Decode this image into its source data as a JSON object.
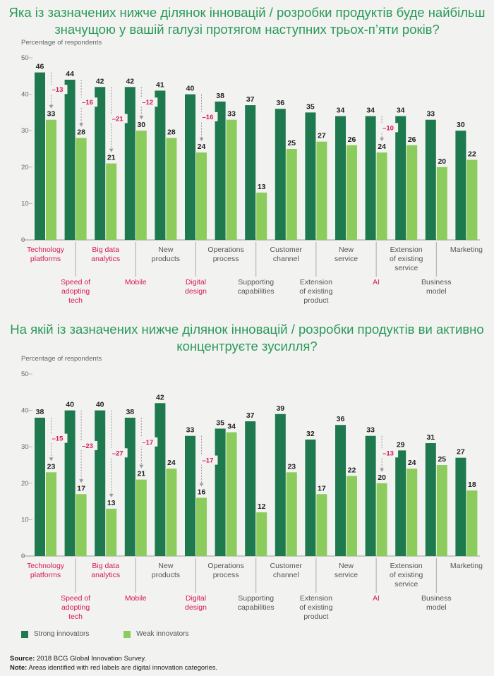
{
  "colors": {
    "strong": "#1e7a4e",
    "weak": "#8ccc5c",
    "digital": "#d7185b",
    "label": "#555555",
    "value": "#222222",
    "axis": "#999999",
    "tick": "#666666"
  },
  "legend": {
    "strong_label": "Strong innovators",
    "weak_label": "Weak innovators"
  },
  "footnote": {
    "source_label": "Source:",
    "source_text": " 2018 BCG Global Innovation Survey.",
    "note_label": "Note:",
    "note_text": " Areas identified with red labels are digital innovation categories."
  },
  "chart_data": [
    {
      "type": "bar",
      "title": "Яка із зазначених нижче ділянок інновацій / розробки продуктів буде найбільш значущою у вашій галузі протягом наступних трьох-п’яти років?",
      "ylabel": "Percentage of respondents",
      "ylim": [
        0,
        50
      ],
      "yticks": [
        0,
        10,
        20,
        30,
        40,
        50
      ],
      "categories": [
        {
          "label": [
            "Technology",
            "platforms"
          ],
          "digital": true,
          "row": 1
        },
        {
          "label": [
            "Speed of",
            "adopting",
            "tech"
          ],
          "digital": true,
          "row": 2
        },
        {
          "label": [
            "Big data",
            "analytics"
          ],
          "digital": true,
          "row": 1
        },
        {
          "label": [
            "Mobile"
          ],
          "digital": true,
          "row": 2
        },
        {
          "label": [
            "New",
            "products"
          ],
          "digital": false,
          "row": 1
        },
        {
          "label": [
            "Digital",
            "design"
          ],
          "digital": true,
          "row": 2
        },
        {
          "label": [
            "Operations",
            "process"
          ],
          "digital": false,
          "row": 1
        },
        {
          "label": [
            "Supporting",
            "capabilities"
          ],
          "digital": false,
          "row": 2
        },
        {
          "label": [
            "Customer",
            "channel"
          ],
          "digital": false,
          "row": 1
        },
        {
          "label": [
            "Extension",
            "of existing",
            "product"
          ],
          "digital": false,
          "row": 2
        },
        {
          "label": [
            "New",
            "service"
          ],
          "digital": false,
          "row": 1
        },
        {
          "label": [
            "AI"
          ],
          "digital": true,
          "row": 2
        },
        {
          "label": [
            "Extension",
            "of existing",
            "service"
          ],
          "digital": false,
          "row": 1
        },
        {
          "label": [
            "Business",
            "model"
          ],
          "digital": false,
          "row": 2
        },
        {
          "label": [
            "Marketing"
          ],
          "digital": false,
          "row": 1
        }
      ],
      "series": [
        {
          "name": "Strong innovators",
          "values": [
            46,
            44,
            42,
            42,
            41,
            40,
            38,
            37,
            36,
            35,
            34,
            34,
            34,
            33,
            30
          ]
        },
        {
          "name": "Weak innovators",
          "values": [
            33,
            28,
            21,
            30,
            28,
            24,
            33,
            13,
            25,
            27,
            26,
            24,
            26,
            20,
            22
          ]
        }
      ],
      "gaps": [
        {
          "index": 0,
          "text": "–13"
        },
        {
          "index": 1,
          "text": "–16"
        },
        {
          "index": 2,
          "text": "–21"
        },
        {
          "index": 3,
          "text": "–12"
        },
        {
          "index": 5,
          "text": "–16"
        },
        {
          "index": 11,
          "text": "–10"
        }
      ]
    },
    {
      "type": "bar",
      "title": "На якій із зазначених нижче ділянок інновацій / розробки продуктів ви активно концентруєте зусилля?",
      "ylabel": "Percentage of respondents",
      "ylim": [
        0,
        50
      ],
      "yticks": [
        0,
        10,
        20,
        30,
        40,
        50
      ],
      "categories": [
        {
          "label": [
            "Technology",
            "platforms"
          ],
          "digital": true,
          "row": 1
        },
        {
          "label": [
            "Speed of",
            "adopting",
            "tech"
          ],
          "digital": true,
          "row": 2
        },
        {
          "label": [
            "Big data",
            "analytics"
          ],
          "digital": true,
          "row": 1
        },
        {
          "label": [
            "Mobile"
          ],
          "digital": true,
          "row": 2
        },
        {
          "label": [
            "New",
            "products"
          ],
          "digital": false,
          "row": 1
        },
        {
          "label": [
            "Digital",
            "design"
          ],
          "digital": true,
          "row": 2
        },
        {
          "label": [
            "Operations",
            "process"
          ],
          "digital": false,
          "row": 1
        },
        {
          "label": [
            "Supporting",
            "capabilities"
          ],
          "digital": false,
          "row": 2
        },
        {
          "label": [
            "Customer",
            "channel"
          ],
          "digital": false,
          "row": 1
        },
        {
          "label": [
            "Extension",
            "of existing",
            "product"
          ],
          "digital": false,
          "row": 2
        },
        {
          "label": [
            "New",
            "service"
          ],
          "digital": false,
          "row": 1
        },
        {
          "label": [
            "AI"
          ],
          "digital": true,
          "row": 2
        },
        {
          "label": [
            "Extension",
            "of existing",
            "service"
          ],
          "digital": false,
          "row": 1
        },
        {
          "label": [
            "Business",
            "model"
          ],
          "digital": false,
          "row": 2
        },
        {
          "label": [
            "Marketing"
          ],
          "digital": false,
          "row": 1
        }
      ],
      "series": [
        {
          "name": "Strong innovators",
          "values": [
            38,
            40,
            40,
            38,
            42,
            33,
            35,
            37,
            39,
            32,
            36,
            33,
            29,
            31,
            27
          ]
        },
        {
          "name": "Weak innovators",
          "values": [
            23,
            17,
            13,
            21,
            24,
            16,
            34,
            12,
            23,
            17,
            22,
            20,
            24,
            25,
            18
          ]
        }
      ],
      "gaps": [
        {
          "index": 0,
          "text": "–15"
        },
        {
          "index": 1,
          "text": "–23"
        },
        {
          "index": 2,
          "text": "–27"
        },
        {
          "index": 3,
          "text": "–17"
        },
        {
          "index": 5,
          "text": "–17"
        },
        {
          "index": 11,
          "text": "–13"
        }
      ]
    }
  ]
}
